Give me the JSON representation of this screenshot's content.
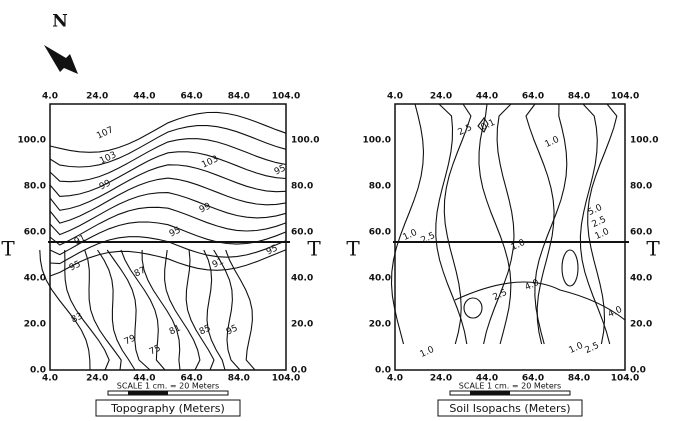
{
  "compass": {
    "label": "N"
  },
  "panels": [
    {
      "x_ticks": [
        "4.0",
        "24.0",
        "44.0",
        "64.0",
        "84.0",
        "104.0"
      ],
      "y_ticks": [
        "0.0",
        "20.0",
        "40.0",
        "60.0",
        "80.0",
        "100.0"
      ],
      "section_marker": "T",
      "contour_labels": [
        "107",
        "103",
        "99",
        "103",
        "99",
        "95",
        "95",
        "91",
        "95",
        "87",
        "91",
        "95",
        "83",
        "79",
        "81",
        "85",
        "75",
        "95"
      ],
      "scale": "SCALE 1 cm. = 20 Meters",
      "caption": "Topography (Meters)"
    },
    {
      "x_ticks": [
        "4.0",
        "24.0",
        "44.0",
        "64.0",
        "84.0",
        "104.0"
      ],
      "y_ticks": [
        "0.0",
        "20.0",
        "40.0",
        "60.0",
        "80.0",
        "100.0"
      ],
      "section_marker": "T",
      "contour_labels": [
        "2.5",
        "0.1",
        "1.0",
        "1.0",
        "2.5",
        "1.0",
        "5.0",
        "2.5",
        "1.0",
        "2.5",
        "4.0",
        "4.0",
        "1.0",
        "1.0",
        "2.5"
      ],
      "scale": "SCALE 1 cm. = 20 Meters",
      "caption": "Soil Isopachs (Meters)"
    }
  ]
}
